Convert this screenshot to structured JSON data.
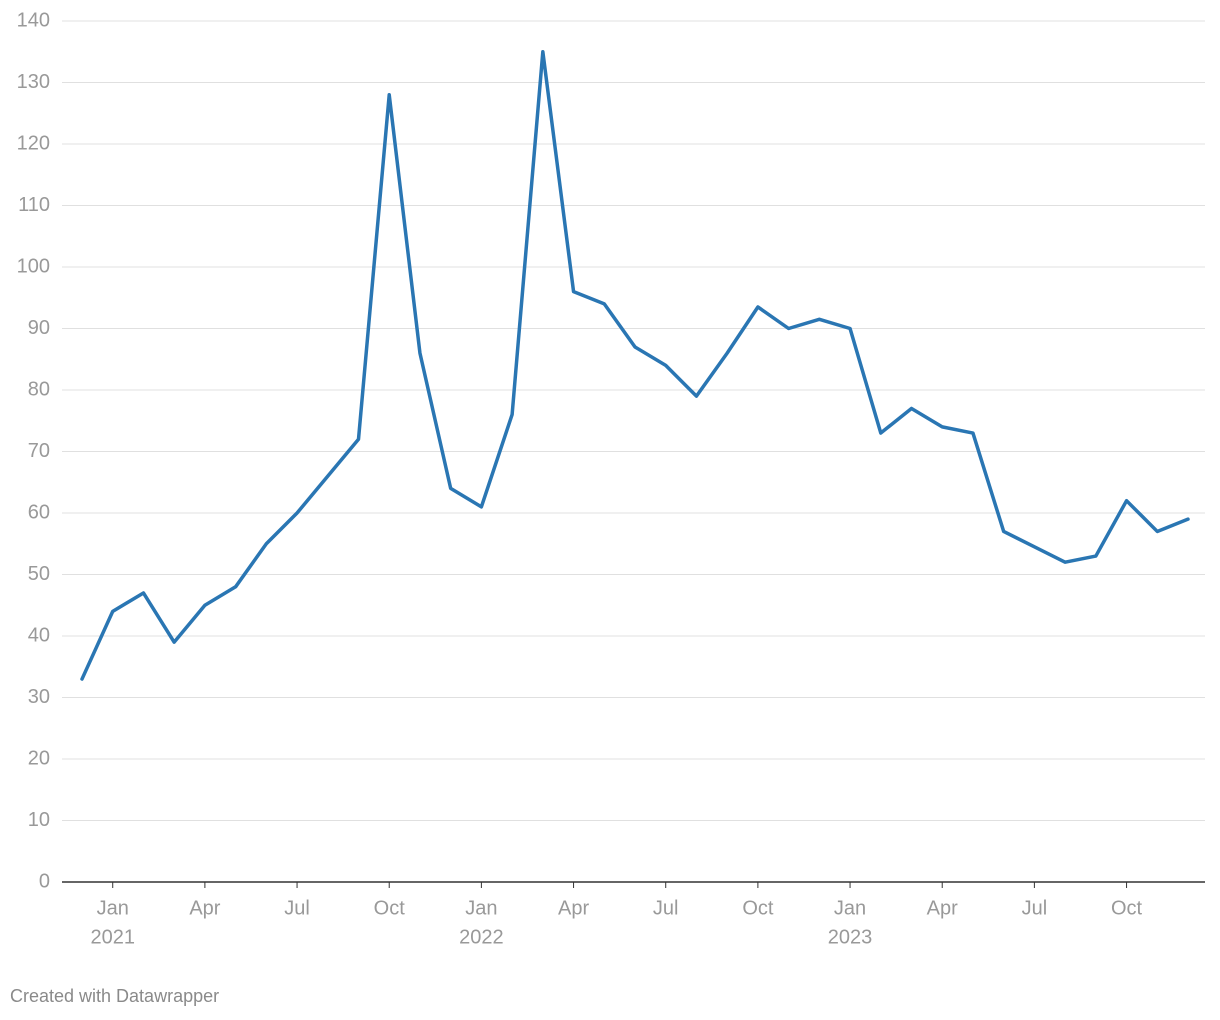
{
  "chart_data": {
    "type": "line",
    "x": [
      "2020-12",
      "2021-01",
      "2021-02",
      "2021-03",
      "2021-04",
      "2021-05",
      "2021-06",
      "2021-07",
      "2021-08",
      "2021-09",
      "2021-10",
      "2021-11",
      "2021-12",
      "2022-01",
      "2022-02",
      "2022-03",
      "2022-04",
      "2022-05",
      "2022-06",
      "2022-07",
      "2022-08",
      "2022-09",
      "2022-10",
      "2022-11",
      "2022-12",
      "2023-01",
      "2023-02",
      "2023-03",
      "2023-04",
      "2023-05",
      "2023-06",
      "2023-07",
      "2023-08",
      "2023-09",
      "2023-10",
      "2023-11",
      "2023-12"
    ],
    "series": [
      {
        "color": "#2a76b3",
        "values": [
          33,
          44,
          47,
          39,
          45,
          48,
          55,
          60,
          66,
          72,
          128,
          86,
          64,
          61,
          76,
          135,
          96,
          94,
          87,
          84,
          79,
          86,
          93.5,
          90,
          91.5,
          90,
          73,
          77,
          74,
          73,
          57,
          54.5,
          52,
          53,
          62,
          57,
          59
        ]
      }
    ],
    "xlim": [
      "2020-12",
      "2023-12"
    ],
    "xticks": [
      {
        "value": "2021-01",
        "label": "Jan",
        "year": "2021"
      },
      {
        "value": "2021-04",
        "label": "Apr"
      },
      {
        "value": "2021-07",
        "label": "Jul"
      },
      {
        "value": "2021-10",
        "label": "Oct"
      },
      {
        "value": "2022-01",
        "label": "Jan",
        "year": "2022"
      },
      {
        "value": "2022-04",
        "label": "Apr"
      },
      {
        "value": "2022-07",
        "label": "Jul"
      },
      {
        "value": "2022-10",
        "label": "Oct"
      },
      {
        "value": "2023-01",
        "label": "Jan",
        "year": "2023"
      },
      {
        "value": "2023-04",
        "label": "Apr"
      },
      {
        "value": "2023-07",
        "label": "Jul"
      },
      {
        "value": "2023-10",
        "label": "Oct"
      }
    ],
    "ylim": [
      0,
      140
    ],
    "yticks": [
      0,
      10,
      20,
      30,
      40,
      50,
      60,
      70,
      80,
      90,
      100,
      110,
      120,
      130,
      140
    ],
    "grid": true,
    "footer": "Created with Datawrapper"
  }
}
